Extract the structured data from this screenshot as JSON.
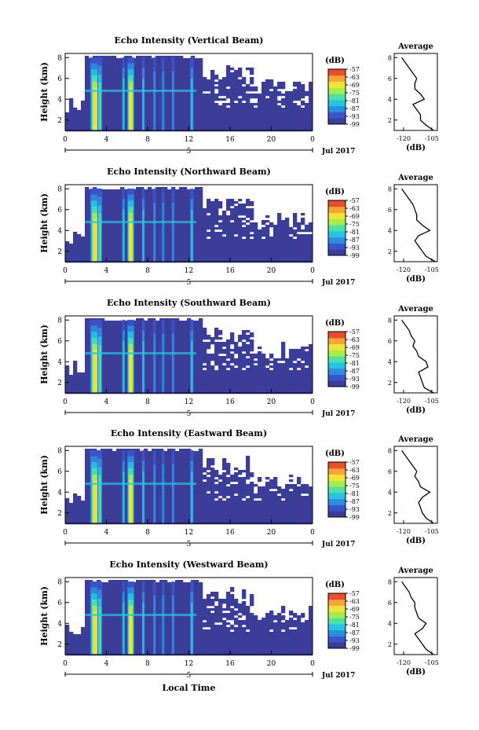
{
  "colors": {
    "colormap": [
      "#3b3d98",
      "#3a55c8",
      "#2f8de0",
      "#26c4de",
      "#4fe0a6",
      "#a6ec4a",
      "#f2e33b",
      "#f5a43a",
      "#e6502e"
    ],
    "no_echo": "#ffffff",
    "axis": "#000000"
  },
  "chart_data": [
    {
      "type": "heatmap",
      "title": "Echo Intensity (Vertical Beam)",
      "ylabel": "Height (km)",
      "xlabel": "",
      "x_ticks": [
        "0",
        "4",
        "8",
        "12",
        "16",
        "20",
        "0"
      ],
      "y_ticks": [
        "2",
        "4",
        "6",
        "8"
      ],
      "date_label": "5",
      "date_suffix": "Jul 2017",
      "colorbar": {
        "label": "(dB)",
        "ticks": [
          "-57",
          "-63",
          "-69",
          "-75",
          "-81",
          "-87",
          "-93",
          "-99"
        ]
      },
      "profile": {
        "title": "Average",
        "xlabel": "(dB)",
        "x_ticks": [
          "-120",
          "-105"
        ],
        "y_ticks": [
          "2",
          "4",
          "6",
          "8"
        ],
        "type": "line",
        "points": [
          [
            -104,
            1.0
          ],
          [
            -108,
            1.5
          ],
          [
            -111,
            2.0
          ],
          [
            -111,
            2.5
          ],
          [
            -113,
            3.0
          ],
          [
            -115,
            3.5
          ],
          [
            -109,
            4.0
          ],
          [
            -111,
            4.5
          ],
          [
            -114,
            5.0
          ],
          [
            -114,
            5.5
          ],
          [
            -113,
            6.0
          ],
          [
            -115,
            6.5
          ],
          [
            -117,
            7.0
          ],
          [
            -119,
            7.5
          ],
          [
            -121,
            8.0
          ]
        ]
      }
    },
    {
      "type": "heatmap",
      "title": "Echo Intensity (Northward Beam)",
      "ylabel": "Height (km)",
      "xlabel": "",
      "x_ticks": [
        "0",
        "4",
        "8",
        "12",
        "16",
        "20",
        "0"
      ],
      "y_ticks": [
        "2",
        "4",
        "6",
        "8"
      ],
      "date_label": "5",
      "date_suffix": "Jul 2017",
      "colorbar": {
        "label": "(dB)",
        "ticks": [
          "-57",
          "-63",
          "-69",
          "-75",
          "-81",
          "-87",
          "-93",
          "-99"
        ]
      },
      "profile": {
        "title": "Average",
        "xlabel": "(dB)",
        "x_ticks": [
          "-120",
          "-105"
        ],
        "y_ticks": [
          "2",
          "4",
          "6",
          "8"
        ],
        "type": "line",
        "points": [
          [
            -103,
            1.0
          ],
          [
            -108,
            1.5
          ],
          [
            -110,
            2.0
          ],
          [
            -112,
            2.5
          ],
          [
            -114,
            3.0
          ],
          [
            -112,
            3.5
          ],
          [
            -106,
            4.0
          ],
          [
            -110,
            4.5
          ],
          [
            -113,
            5.0
          ],
          [
            -113,
            5.5
          ],
          [
            -114,
            6.0
          ],
          [
            -115,
            6.5
          ],
          [
            -117,
            7.0
          ],
          [
            -119,
            7.5
          ],
          [
            -121,
            8.0
          ]
        ]
      }
    },
    {
      "type": "heatmap",
      "title": "Echo Intensity (Southward Beam)",
      "ylabel": "Height (km)",
      "xlabel": "",
      "x_ticks": [
        "0",
        "4",
        "8",
        "12",
        "16",
        "20",
        "0"
      ],
      "y_ticks": [
        "2",
        "4",
        "6",
        "8"
      ],
      "date_label": "5",
      "date_suffix": "Jul 2017",
      "colorbar": {
        "label": "(dB)",
        "ticks": [
          "-57",
          "-63",
          "-69",
          "-75",
          "-81",
          "-87",
          "-93",
          "-99"
        ]
      },
      "profile": {
        "title": "Average",
        "xlabel": "(dB)",
        "x_ticks": [
          "-120",
          "-105"
        ],
        "y_ticks": [
          "2",
          "4",
          "6",
          "8"
        ],
        "type": "line",
        "points": [
          [
            -104,
            1.0
          ],
          [
            -109,
            1.5
          ],
          [
            -110,
            2.0
          ],
          [
            -111,
            2.5
          ],
          [
            -112,
            3.0
          ],
          [
            -107,
            3.5
          ],
          [
            -108,
            4.0
          ],
          [
            -112,
            4.5
          ],
          [
            -113,
            5.0
          ],
          [
            -115,
            5.5
          ],
          [
            -114,
            6.0
          ],
          [
            -116,
            6.5
          ],
          [
            -117,
            7.0
          ],
          [
            -119,
            7.5
          ],
          [
            -121,
            8.0
          ]
        ]
      }
    },
    {
      "type": "heatmap",
      "title": "Echo Intensity (Eastward Beam)",
      "ylabel": "Height (km)",
      "xlabel": "",
      "x_ticks": [
        "0",
        "4",
        "8",
        "12",
        "16",
        "20",
        "0"
      ],
      "y_ticks": [
        "2",
        "4",
        "6",
        "8"
      ],
      "date_label": "5",
      "date_suffix": "Jul 2017",
      "colorbar": {
        "label": "(dB)",
        "ticks": [
          "-57",
          "-63",
          "-69",
          "-75",
          "-81",
          "-87",
          "-93",
          "-99"
        ]
      },
      "profile": {
        "title": "Average",
        "xlabel": "(dB)",
        "x_ticks": [
          "-120",
          "-105"
        ],
        "y_ticks": [
          "2",
          "4",
          "6",
          "8"
        ],
        "type": "line",
        "points": [
          [
            -104,
            1.0
          ],
          [
            -108,
            1.5
          ],
          [
            -110,
            2.0
          ],
          [
            -111,
            2.5
          ],
          [
            -112,
            3.0
          ],
          [
            -110,
            3.5
          ],
          [
            -106,
            4.0
          ],
          [
            -111,
            4.5
          ],
          [
            -112,
            5.0
          ],
          [
            -114,
            5.5
          ],
          [
            -113,
            6.0
          ],
          [
            -115,
            6.5
          ],
          [
            -117,
            7.0
          ],
          [
            -119,
            7.5
          ],
          [
            -121,
            8.0
          ]
        ]
      }
    },
    {
      "type": "heatmap",
      "title": "Echo Intensity (Westward Beam)",
      "ylabel": "Height (km)",
      "xlabel": "Local Time",
      "x_ticks": [
        "0",
        "4",
        "8",
        "12",
        "16",
        "20",
        "0"
      ],
      "y_ticks": [
        "2",
        "4",
        "6",
        "8"
      ],
      "date_label": "5",
      "date_suffix": "Jul 2017",
      "colorbar": {
        "label": "(dB)",
        "ticks": [
          "-57",
          "-63",
          "-69",
          "-75",
          "-81",
          "-87",
          "-93",
          "-99"
        ]
      },
      "profile": {
        "title": "Average",
        "xlabel": "(dB)",
        "x_ticks": [
          "-120",
          "-105"
        ],
        "y_ticks": [
          "2",
          "4",
          "6",
          "8"
        ],
        "type": "line",
        "points": [
          [
            -104,
            1.0
          ],
          [
            -108,
            1.5
          ],
          [
            -110,
            2.0
          ],
          [
            -112,
            2.5
          ],
          [
            -114,
            3.0
          ],
          [
            -110,
            3.5
          ],
          [
            -108,
            4.0
          ],
          [
            -112,
            4.5
          ],
          [
            -113,
            5.0
          ],
          [
            -114,
            5.5
          ],
          [
            -114,
            6.0
          ],
          [
            -116,
            6.5
          ],
          [
            -117,
            7.0
          ],
          [
            -119,
            7.5
          ],
          [
            -121,
            8.0
          ]
        ]
      }
    }
  ]
}
